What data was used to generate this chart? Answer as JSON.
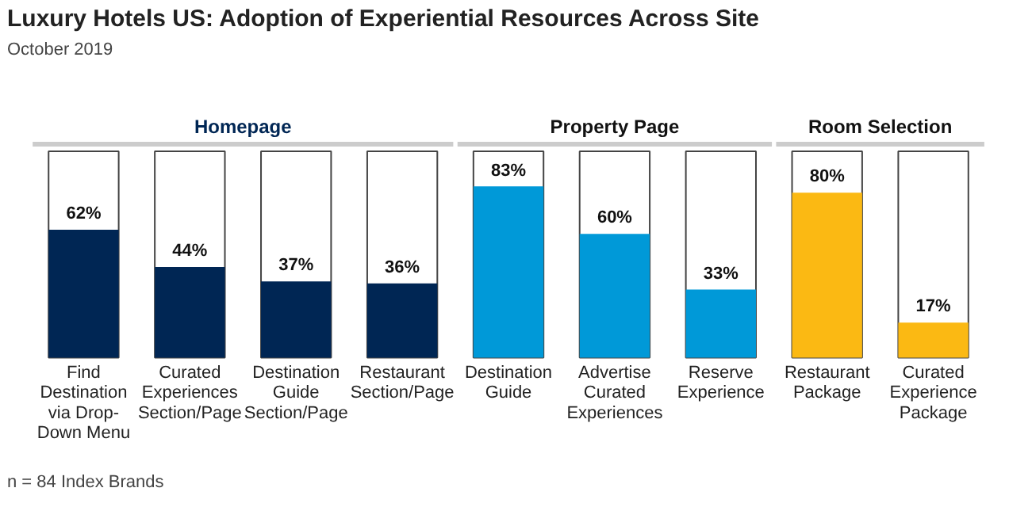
{
  "chart_data": {
    "type": "bar",
    "title": "Luxury Hotels US: Adoption of Experiential Resources Across Site",
    "subtitle": "October 2019",
    "categories": [
      "Find Destination via Drop-Down Menu",
      "Curated Experiences Section/Page",
      "Destination Guide Section/Page",
      "Restaurant Section/Page",
      "Destination Guide",
      "Advertise Curated Experiences",
      "Reserve Experience",
      "Restaurant Package",
      "Curated Experience Package"
    ],
    "series": [
      {
        "name": "Homepage",
        "color": "#002654",
        "values": [
          62,
          44,
          37,
          36,
          null,
          null,
          null,
          null,
          null
        ],
        "value_labels": [
          "62%",
          "44%",
          "37%",
          "36%",
          null,
          null,
          null,
          null,
          null
        ]
      },
      {
        "name": "Property Page",
        "color": "#0099d8",
        "values": [
          null,
          null,
          null,
          null,
          83,
          60,
          33,
          null,
          null
        ],
        "value_labels": [
          null,
          null,
          null,
          null,
          "83%",
          "60%",
          "33%",
          null,
          null
        ]
      },
      {
        "name": "Room Selection",
        "color": "#fbb913",
        "values": [
          null,
          null,
          null,
          null,
          null,
          null,
          null,
          80,
          17
        ],
        "value_labels": [
          null,
          null,
          null,
          null,
          null,
          null,
          null,
          "80%",
          "17%"
        ]
      }
    ],
    "ylim": [
      0,
      100
    ],
    "annotations": [
      "n = 84 Index Brands"
    ]
  }
}
